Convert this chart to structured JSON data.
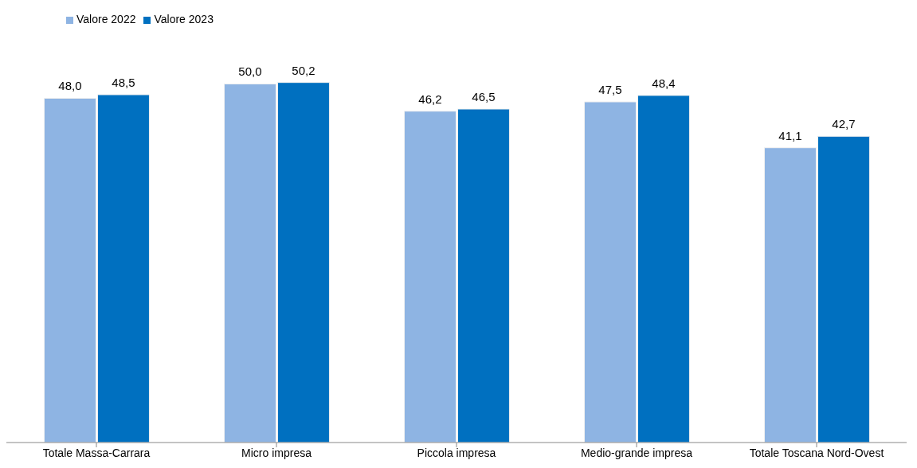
{
  "chart_data": {
    "type": "bar",
    "categories": [
      "Totale Massa-Carrara",
      "Micro impresa",
      "Piccola impresa",
      "Medio-grande impresa",
      "Totale Toscana Nord-Ovest"
    ],
    "series": [
      {
        "name": "Valore 2022",
        "color": "#8eb4e3",
        "values": [
          48.0,
          50.0,
          46.2,
          47.5,
          41.1
        ],
        "value_labels": [
          "48,0",
          "50,0",
          "46,2",
          "47,5",
          "41,1"
        ]
      },
      {
        "name": "Valore 2023",
        "color": "#0070c0",
        "values": [
          48.5,
          50.2,
          46.5,
          48.4,
          42.7
        ],
        "value_labels": [
          "48,5",
          "50,2",
          "46,5",
          "48,4",
          "42,7"
        ]
      }
    ],
    "legend": "top left",
    "grid": false
  }
}
